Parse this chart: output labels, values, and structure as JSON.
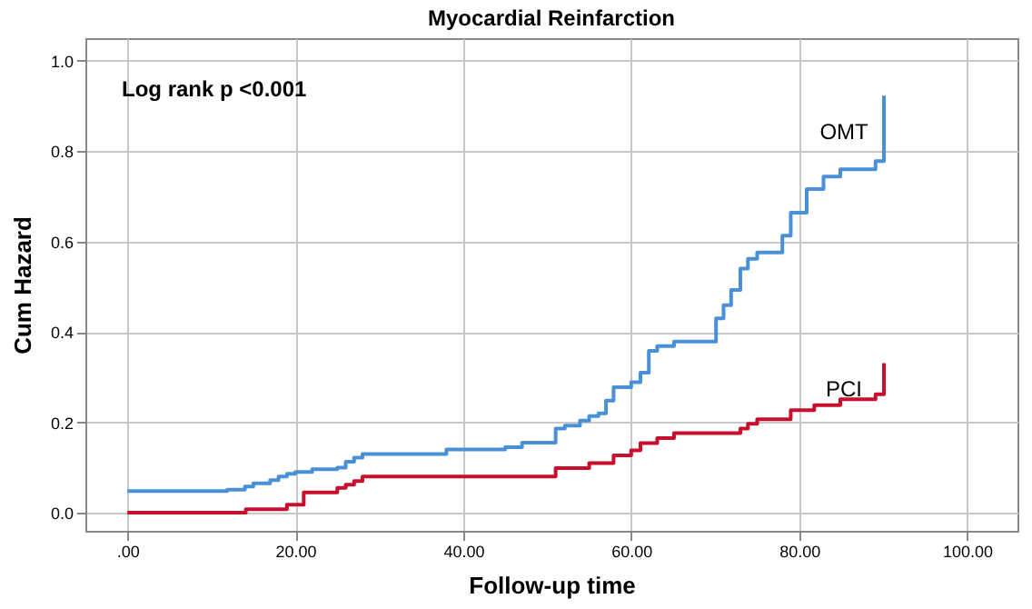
{
  "chart_data": {
    "type": "step",
    "title": "Myocardial Reinfarction",
    "xlabel": "Follow-up time",
    "ylabel": "Cum Hazard",
    "annotations": [
      "Log rank p <0.001"
    ],
    "series": [
      {
        "name": "OMT",
        "color": "#4a90d9",
        "x": [
          0,
          11.9,
          14,
          15,
          17,
          18,
          19,
          20,
          22,
          25,
          26,
          27,
          28,
          38,
          45,
          47,
          51.0,
          52.1,
          53.9,
          55.0,
          56.1,
          57.0,
          57.9,
          60.0,
          61.1,
          62.1,
          63.1,
          65.1,
          70.1,
          71.0,
          71.9,
          73.0,
          73.9,
          75.0,
          78.0,
          79.0,
          80.9,
          82.9,
          84.9,
          89.1,
          90.1
        ],
        "values": [
          0.048,
          0.051,
          0.058,
          0.065,
          0.072,
          0.08,
          0.086,
          0.09,
          0.096,
          0.1,
          0.113,
          0.122,
          0.13,
          0.14,
          0.145,
          0.155,
          0.186,
          0.193,
          0.204,
          0.214,
          0.22,
          0.248,
          0.278,
          0.289,
          0.31,
          0.358,
          0.369,
          0.379,
          0.43,
          0.459,
          0.493,
          0.54,
          0.562,
          0.576,
          0.613,
          0.664,
          0.716,
          0.744,
          0.76,
          0.778,
          0.923
        ]
      },
      {
        "name": "PCI",
        "color": "#c8102e",
        "x": [
          0,
          14.1,
          19.0,
          21.0,
          25,
          26,
          27,
          28,
          51.0,
          55.0,
          57.9,
          60.0,
          61.1,
          63.1,
          65.1,
          73.0,
          73.9,
          75.0,
          79.0,
          81.8,
          84.9,
          89.1,
          90.1
        ],
        "values": [
          0,
          0.008,
          0.018,
          0.045,
          0.055,
          0.062,
          0.07,
          0.08,
          0.099,
          0.11,
          0.127,
          0.138,
          0.154,
          0.165,
          0.176,
          0.186,
          0.197,
          0.207,
          0.227,
          0.238,
          0.251,
          0.262,
          0.331
        ]
      }
    ],
    "xlim": [
      -5,
      106
    ],
    "ylim": [
      -0.04,
      1.05
    ],
    "xticks": [
      {
        "value": 0,
        "label": ".00"
      },
      {
        "value": 20,
        "label": "20.00"
      },
      {
        "value": 40,
        "label": "40.00"
      },
      {
        "value": 60,
        "label": "60.00"
      },
      {
        "value": 80,
        "label": "80.00"
      },
      {
        "value": 100,
        "label": "100.00"
      }
    ],
    "yticks": [
      {
        "value": 0,
        "label": "0.0"
      },
      {
        "value": 0.2,
        "label": "0.2"
      },
      {
        "value": 0.4,
        "label": "0.4"
      },
      {
        "value": 0.6,
        "label": "0.6"
      },
      {
        "value": 0.8,
        "label": "0.8"
      },
      {
        "value": 1.0,
        "label": "1.0"
      }
    ],
    "grid": true
  }
}
